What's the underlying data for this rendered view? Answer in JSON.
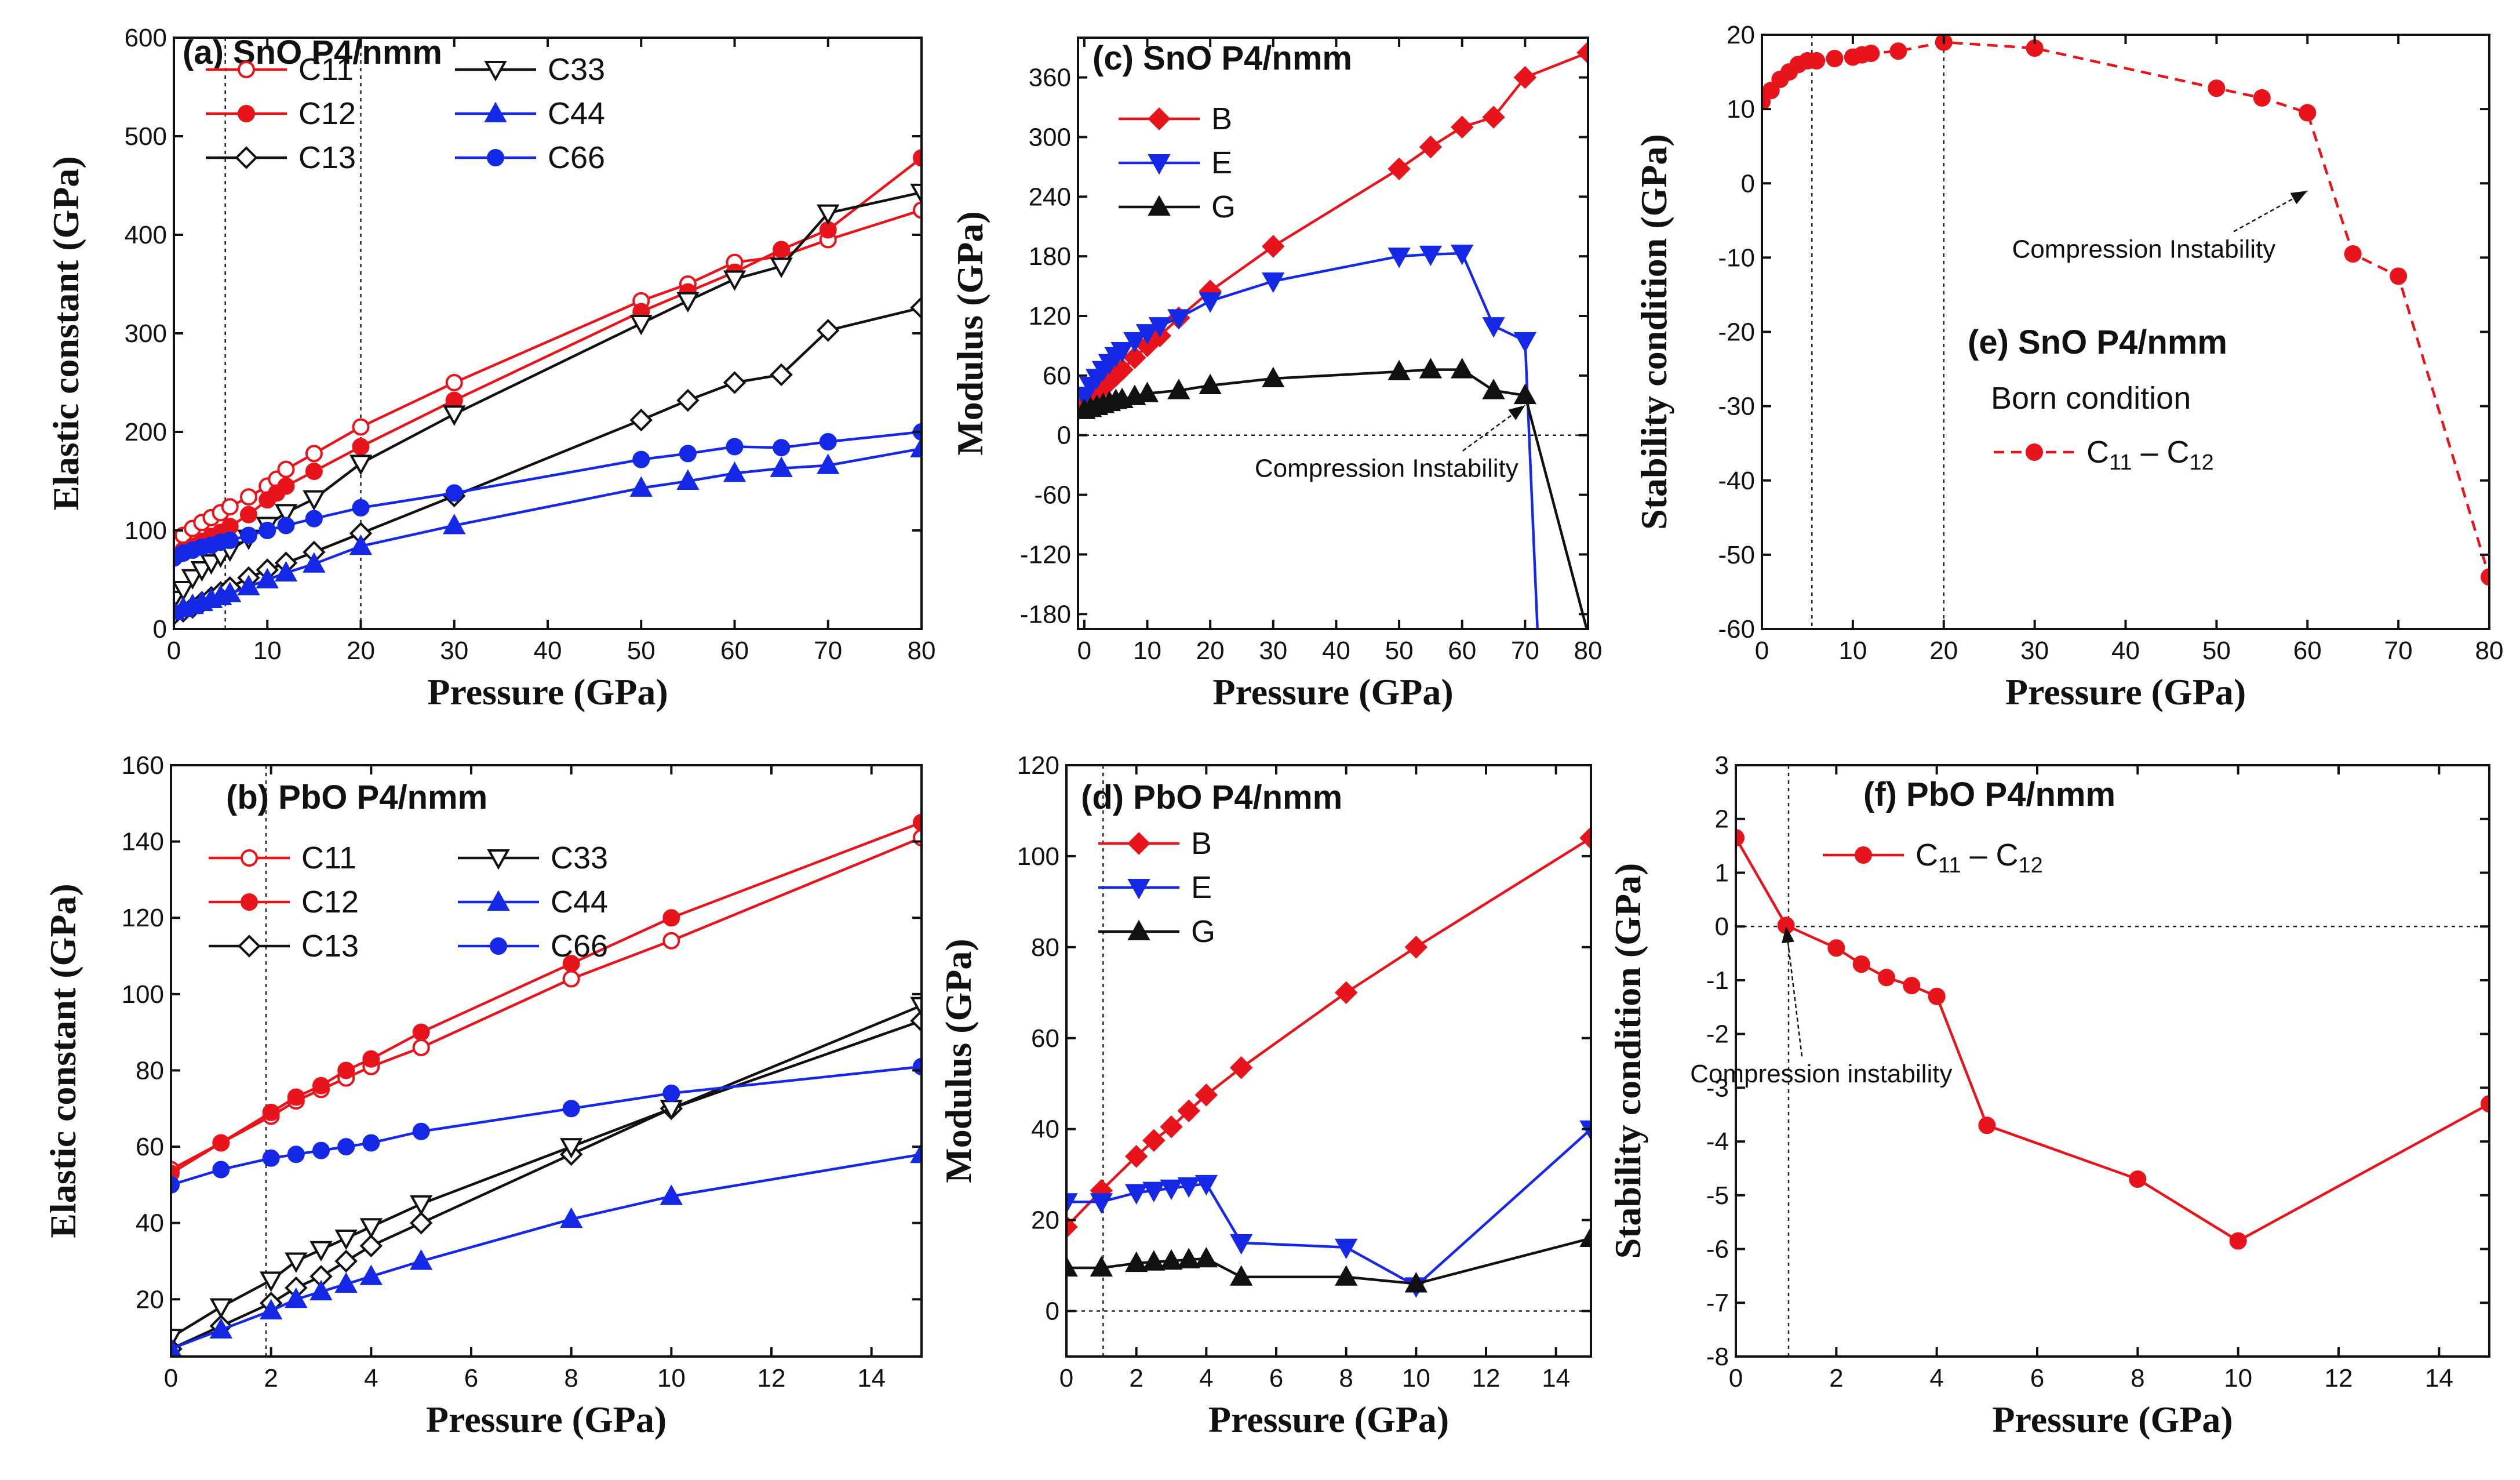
{
  "chart_data": [
    {
      "id": "a",
      "type": "line",
      "title": "(a) SnO P4/nmm",
      "xlabel": "Pressure (GPa)",
      "ylabel": "Elastic constant (GPa)",
      "xlim": [
        0,
        80
      ],
      "ylim": [
        0,
        600
      ],
      "xticks": [
        0,
        10,
        20,
        30,
        40,
        50,
        60,
        70,
        80
      ],
      "yticks": [
        0,
        100,
        200,
        300,
        400,
        500,
        600
      ],
      "vlines": [
        5.5,
        20
      ],
      "hline": null,
      "legend_cols": 2,
      "series": [
        {
          "name": "C11",
          "sub": "",
          "color": "#e8141b",
          "marker": "circle-open",
          "x": [
            0,
            1,
            2,
            3,
            4,
            5,
            6,
            8,
            10,
            11,
            12,
            15,
            20,
            30,
            50,
            55,
            60,
            65,
            70,
            80
          ],
          "y": [
            85,
            95,
            102,
            108,
            113,
            118,
            124,
            134,
            145,
            152,
            162,
            178,
            205,
            250,
            333,
            350,
            372,
            378,
            395,
            425
          ]
        },
        {
          "name": "C12",
          "sub": "",
          "color": "#e8141b",
          "marker": "circle",
          "x": [
            0,
            1,
            2,
            3,
            4,
            5,
            6,
            8,
            10,
            11,
            12,
            15,
            20,
            30,
            50,
            55,
            60,
            65,
            70,
            80
          ],
          "y": [
            75,
            80,
            84,
            89,
            94,
            98,
            104,
            116,
            131,
            138,
            145,
            160,
            185,
            232,
            322,
            342,
            362,
            385,
            405,
            478
          ]
        },
        {
          "name": "C13",
          "sub": "",
          "color": "#111111",
          "marker": "diamond-open",
          "x": [
            0,
            1,
            2,
            3,
            4,
            5,
            6,
            8,
            10,
            12,
            15,
            20,
            30,
            50,
            55,
            60,
            65,
            70,
            80
          ],
          "y": [
            15,
            18,
            22,
            27,
            32,
            37,
            42,
            52,
            60,
            67,
            78,
            97,
            135,
            212,
            232,
            250,
            258,
            303,
            326
          ]
        },
        {
          "name": "C33",
          "sub": "",
          "color": "#111111",
          "marker": "triangle-down-open",
          "x": [
            0,
            1,
            2,
            3,
            4,
            5,
            6,
            8,
            10,
            12,
            15,
            20,
            30,
            50,
            55,
            60,
            65,
            70,
            80
          ],
          "y": [
            30,
            40,
            52,
            60,
            67,
            74,
            80,
            92,
            105,
            118,
            132,
            168,
            218,
            310,
            333,
            355,
            368,
            422,
            443
          ]
        },
        {
          "name": "C44",
          "sub": "",
          "color": "#1428e6",
          "marker": "triangle",
          "x": [
            0,
            1,
            2,
            3,
            4,
            5,
            6,
            8,
            10,
            12,
            15,
            20,
            30,
            50,
            55,
            60,
            65,
            70,
            80
          ],
          "y": [
            18,
            21,
            24,
            27,
            30,
            33,
            36,
            43,
            50,
            57,
            66,
            84,
            105,
            143,
            150,
            158,
            163,
            166,
            183
          ]
        },
        {
          "name": "C66",
          "sub": "",
          "color": "#1428e6",
          "marker": "circle",
          "x": [
            0,
            1,
            2,
            3,
            4,
            5,
            6,
            8,
            10,
            12,
            15,
            20,
            30,
            50,
            55,
            60,
            65,
            70,
            80
          ],
          "y": [
            72,
            77,
            80,
            83,
            85,
            88,
            90,
            95,
            100,
            105,
            112,
            123,
            138,
            172,
            178,
            185,
            184,
            190,
            200
          ]
        }
      ],
      "annotations": []
    },
    {
      "id": "b",
      "type": "line",
      "title": "(b) PbO P4/nmm",
      "xlabel": "Pressure (GPa)",
      "ylabel": "Elastic constant (GPa)",
      "xlim": [
        0,
        15
      ],
      "ylim": [
        5,
        160
      ],
      "xticks": [
        0,
        2,
        4,
        6,
        8,
        10,
        12,
        14
      ],
      "yticks": [
        20,
        40,
        60,
        80,
        100,
        120,
        140,
        160
      ],
      "vlines": [
        1.9
      ],
      "hline": null,
      "legend_cols": 2,
      "series": [
        {
          "name": "C11",
          "sub": "",
          "color": "#e8141b",
          "marker": "circle-open",
          "x": [
            0,
            1,
            2,
            2.5,
            3,
            3.5,
            4,
            5,
            8,
            10,
            15
          ],
          "y": [
            54,
            61,
            68,
            72,
            75,
            78,
            81,
            86,
            104,
            114,
            141
          ]
        },
        {
          "name": "C12",
          "sub": "",
          "color": "#e8141b",
          "marker": "circle",
          "x": [
            0,
            1,
            2,
            2.5,
            3,
            3.5,
            4,
            5,
            8,
            10,
            15
          ],
          "y": [
            53,
            61,
            69,
            73,
            76,
            80,
            83,
            90,
            108,
            120,
            145
          ]
        },
        {
          "name": "C13",
          "sub": "",
          "color": "#111111",
          "marker": "diamond-open",
          "x": [
            0,
            1,
            2,
            2.5,
            3,
            3.5,
            4,
            5,
            8,
            10,
            15
          ],
          "y": [
            7,
            13,
            19,
            23,
            26,
            30,
            34,
            40,
            58,
            70,
            93
          ]
        },
        {
          "name": "C33",
          "sub": "",
          "color": "#111111",
          "marker": "triangle-down-open",
          "x": [
            0,
            1,
            2,
            2.5,
            3,
            3.5,
            4,
            5,
            8,
            10,
            15
          ],
          "y": [
            10,
            18,
            25,
            30,
            33,
            36,
            39,
            45,
            60,
            70,
            97
          ]
        },
        {
          "name": "C44",
          "sub": "",
          "color": "#1428e6",
          "marker": "triangle",
          "x": [
            0,
            1,
            2,
            2.5,
            3,
            3.5,
            4,
            5,
            8,
            10,
            15
          ],
          "y": [
            7,
            12,
            17,
            20,
            22,
            24,
            26,
            30,
            41,
            47,
            58
          ]
        },
        {
          "name": "C66",
          "sub": "",
          "color": "#1428e6",
          "marker": "circle",
          "x": [
            0,
            1,
            2,
            2.5,
            3,
            3.5,
            4,
            5,
            8,
            10,
            15
          ],
          "y": [
            50,
            54,
            57,
            58,
            59,
            60,
            61,
            64,
            70,
            74,
            81
          ]
        }
      ],
      "annotations": []
    },
    {
      "id": "c",
      "type": "line",
      "title": "(c) SnO P4/nmm",
      "xlabel": "Pressure (GPa)",
      "ylabel": "Modulus (GPa)",
      "xlim": [
        -1,
        80
      ],
      "ylim": [
        -195,
        400
      ],
      "xticks": [
        0,
        10,
        20,
        30,
        40,
        50,
        60,
        70,
        80
      ],
      "yticks": [
        -180,
        -120,
        -60,
        0,
        60,
        120,
        180,
        240,
        300,
        360
      ],
      "vlines": [],
      "hline": 0,
      "legend_cols": 1,
      "series": [
        {
          "name": "B",
          "sub": "",
          "color": "#e8141b",
          "marker": "diamond",
          "x": [
            0,
            1,
            2,
            3,
            4,
            5,
            6,
            8,
            10,
            12,
            15,
            20,
            30,
            50,
            55,
            60,
            65,
            70,
            80
          ],
          "y": [
            30,
            36,
            42,
            48,
            54,
            60,
            66,
            78,
            90,
            100,
            118,
            145,
            190,
            268,
            290,
            310,
            320,
            360,
            385
          ]
        },
        {
          "name": "E",
          "sub": "",
          "color": "#1428e6",
          "marker": "triangle-down",
          "x": [
            0,
            1,
            2,
            3,
            4,
            5,
            6,
            8,
            10,
            12,
            15,
            20,
            30,
            50,
            55,
            60,
            65,
            70,
            72
          ],
          "y": [
            40,
            50,
            58,
            66,
            73,
            80,
            85,
            95,
            103,
            110,
            118,
            135,
            155,
            180,
            182,
            183,
            110,
            95,
            -200
          ]
        },
        {
          "name": "G",
          "sub": "",
          "color": "#111111",
          "marker": "triangle",
          "x": [
            0,
            1,
            2,
            3,
            4,
            5,
            6,
            8,
            10,
            15,
            20,
            30,
            50,
            55,
            60,
            65,
            70,
            80
          ],
          "y": [
            25,
            27,
            29,
            31,
            33,
            35,
            36,
            39,
            42,
            45,
            50,
            57,
            64,
            66,
            66,
            45,
            40,
            -200
          ]
        }
      ],
      "annotations": [
        {
          "text": "Compression Instability",
          "x": 48,
          "y": -42,
          "ax": 70,
          "ay": 30
        }
      ]
    },
    {
      "id": "d",
      "type": "line",
      "title": "(d) PbO P4/nmm",
      "xlabel": "Pressure (GPa)",
      "ylabel": "Modulus (GPa)",
      "xlim": [
        0,
        15
      ],
      "ylim": [
        -10,
        120
      ],
      "xticks": [
        0,
        2,
        4,
        6,
        8,
        10,
        12,
        14
      ],
      "yticks": [
        0,
        20,
        40,
        60,
        80,
        100,
        120
      ],
      "vlines": [
        1.05
      ],
      "hline": 0,
      "legend_cols": 1,
      "series": [
        {
          "name": "B",
          "sub": "",
          "color": "#e8141b",
          "marker": "diamond",
          "x": [
            0,
            1,
            2,
            2.5,
            3,
            3.5,
            4,
            5,
            8,
            10,
            15
          ],
          "y": [
            18.5,
            26.5,
            34,
            37.5,
            40.5,
            44,
            47.5,
            53.5,
            70,
            80,
            104
          ]
        },
        {
          "name": "E",
          "sub": "",
          "color": "#1428e6",
          "marker": "triangle-down",
          "x": [
            0,
            1,
            2,
            2.5,
            3,
            3.5,
            4,
            5,
            8,
            10,
            15
          ],
          "y": [
            24,
            24,
            26,
            26.5,
            27,
            27.5,
            28,
            15,
            14,
            5.5,
            40
          ]
        },
        {
          "name": "G",
          "sub": "",
          "color": "#111111",
          "marker": "triangle",
          "x": [
            0,
            1,
            2,
            2.5,
            3,
            3.5,
            4,
            5,
            8,
            10,
            15
          ],
          "y": [
            9.5,
            9.5,
            10.5,
            10.8,
            11,
            11.3,
            11.5,
            7.5,
            7.5,
            6,
            16
          ]
        }
      ],
      "annotations": []
    },
    {
      "id": "e",
      "type": "line",
      "title": "(e) SnO P4/nmm",
      "subtitle": "Born condition",
      "xlabel": "Pressure (GPa)",
      "ylabel": "Stability condition (GPa)",
      "xlim": [
        0,
        80
      ],
      "ylim": [
        -60,
        20
      ],
      "xticks": [
        0,
        10,
        20,
        30,
        40,
        50,
        60,
        70,
        80
      ],
      "yticks": [
        -60,
        -50,
        -40,
        -30,
        -20,
        -10,
        0,
        10,
        20
      ],
      "vlines": [
        5.5,
        20
      ],
      "hline": null,
      "legend_cols": 1,
      "series": [
        {
          "name": "C",
          "sub": "11",
          "name2": " – C",
          "sub2": "12",
          "color": "#e8141b",
          "marker": "circle",
          "dashed": true,
          "x": [
            0,
            1,
            2,
            3,
            4,
            5,
            6,
            8,
            10,
            11,
            12,
            15,
            20,
            30,
            50,
            55,
            60,
            65,
            70,
            80
          ],
          "y": [
            11,
            12.5,
            14,
            15,
            16,
            16.5,
            16.5,
            16.8,
            17,
            17.3,
            17.5,
            17.8,
            19,
            18.2,
            12.8,
            11.5,
            9.5,
            -9.5,
            -12.5,
            -53
          ]
        }
      ],
      "annotations": [
        {
          "text": "Compression Instability",
          "x": 42,
          "y": -10,
          "ax": 60,
          "ay": -1
        }
      ]
    },
    {
      "id": "f",
      "type": "line",
      "title": "(f) PbO P4/nmm",
      "xlabel": "Pressure (GPa)",
      "ylabel": "Stability condition (GPa)",
      "xlim": [
        0,
        15
      ],
      "ylim": [
        -8,
        3
      ],
      "xticks": [
        0,
        2,
        4,
        6,
        8,
        10,
        12,
        14
      ],
      "yticks": [
        -8,
        -7,
        -6,
        -5,
        -4,
        -3,
        -2,
        -1,
        0,
        1,
        2,
        3
      ],
      "vlines": [
        1.05
      ],
      "hline": 0,
      "legend_cols": 1,
      "series": [
        {
          "name": "C",
          "sub": "11",
          "name2": " – C",
          "sub2": "12",
          "color": "#e8141b",
          "marker": "circle",
          "x": [
            0,
            1,
            2,
            2.5,
            3,
            3.5,
            4,
            5,
            8,
            10,
            15
          ],
          "y": [
            1.65,
            0.02,
            -0.4,
            -0.7,
            -0.95,
            -1.1,
            -1.3,
            -3.7,
            -4.7,
            -5.85,
            -3.3
          ]
        }
      ],
      "annotations": [
        {
          "text": "Compression instability",
          "x": 1.7,
          "y": -2.9,
          "ax": 1.0,
          "ay": 0
        }
      ]
    }
  ]
}
